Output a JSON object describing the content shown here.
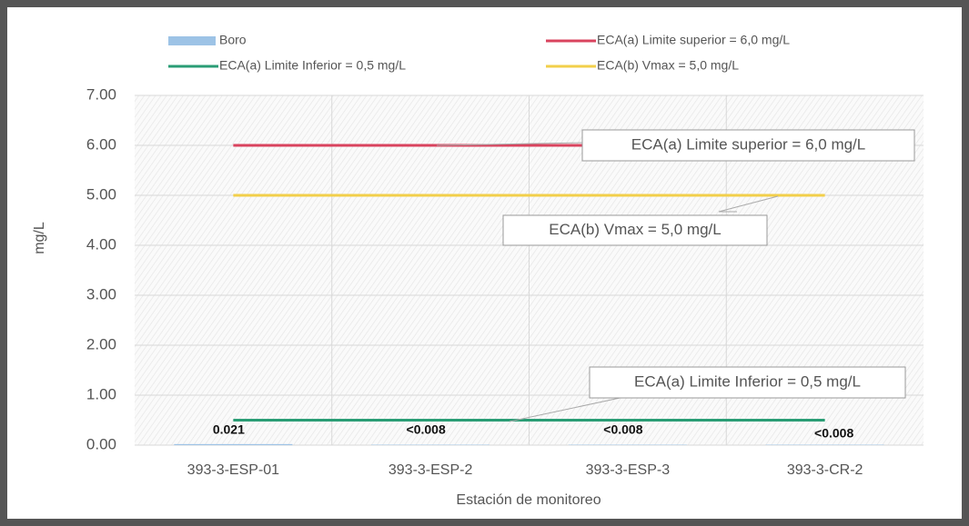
{
  "chart_data": {
    "type": "bar",
    "categories": [
      "393-3-ESP-01",
      "393-3-ESP-2",
      "393-3-ESP-3",
      "393-3-CR-2"
    ],
    "series": [
      {
        "name": "Boro",
        "type": "bar",
        "color": "#9dc3e6",
        "values": [
          0.021,
          0.008,
          0.008,
          0.008
        ],
        "value_labels": [
          "0.021",
          "<0.008",
          "<0.008",
          "<0.008"
        ]
      },
      {
        "name": "ECA(a) Limite superior = 6,0 mg/L",
        "type": "line",
        "color": "#d9435e",
        "values": [
          6,
          6,
          6,
          6
        ]
      },
      {
        "name": "ECA(a) Limite Inferior = 0,5 mg/L",
        "type": "line",
        "color": "#2a9d75",
        "values": [
          0.5,
          0.5,
          0.5,
          0.5
        ]
      },
      {
        "name": "ECA(b) Vmax = 5,0 mg/L",
        "type": "line",
        "color": "#f2cf4a",
        "values": [
          5,
          5,
          5,
          5
        ]
      }
    ],
    "annotations": [
      "ECA(a) Limite superior = 6,0 mg/L",
      "ECA(b) Vmax = 5,0 mg/L",
      "ECA(a) Limite Inferior = 0,5 mg/L"
    ],
    "ylabel": "mg/L",
    "xlabel": "Estación de monitoreo",
    "ylim": [
      0,
      7
    ],
    "yticks": [
      {
        "value": 0,
        "label": "0.00"
      },
      {
        "value": 1,
        "label": "1.00"
      },
      {
        "value": 2,
        "label": "2.00"
      },
      {
        "value": 3,
        "label": "3.00"
      },
      {
        "value": 4,
        "label": "4.00"
      },
      {
        "value": 5,
        "label": "5.00"
      },
      {
        "value": 6,
        "label": "6.00"
      },
      {
        "value": 7,
        "label": "7.00"
      }
    ],
    "grid": true
  }
}
